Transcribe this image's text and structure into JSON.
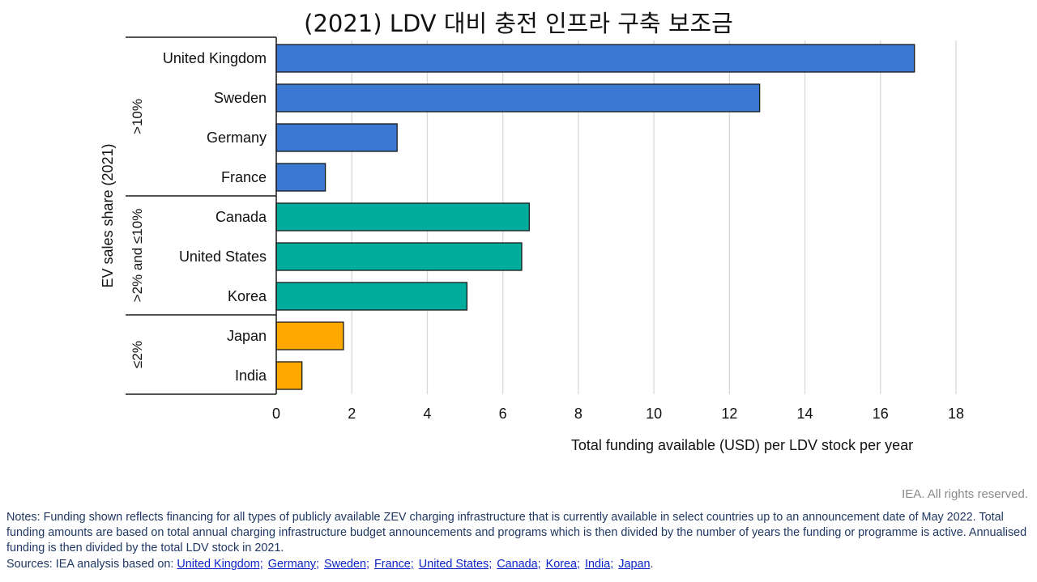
{
  "title": "(2021) LDV 대비 충전 인프라 구축 보조금",
  "credit": "IEA. All rights reserved.",
  "notes": "Notes: Funding shown reflects financing for all types of publicly available ZEV charging infrastructure that is currently available in select countries up to an announcement date of May 2022. Total funding amounts are based on total annual charging infrastructure budget announcements and programs which is then divided by the number of years the funding or programme is active. Annualised funding is then divided by the total LDV stock in 2021.",
  "sources": {
    "prefix": "Sources: IEA analysis based on: ",
    "links": [
      "United Kingdom;",
      "Germany;",
      "Sweden;",
      "France;",
      "United States;",
      "Canada;",
      "Korea;",
      "India;",
      "Japan"
    ],
    "suffix": "."
  },
  "colors": {
    "group_high": "#3a78d4",
    "group_mid": "#00ad9c",
    "group_low": "#ffa800",
    "grid": "#d9d9d9",
    "bar_outline": "#1a1a1a"
  },
  "chart_data": {
    "type": "bar",
    "orientation": "horizontal",
    "xlabel": "Total funding available (USD) per LDV stock per year",
    "ylabel": "EV sales share (2021)",
    "xlim": [
      0,
      18
    ],
    "xticks": [
      "0",
      "2",
      "4",
      "6",
      "8",
      "10",
      "12",
      "14",
      "16",
      "18"
    ],
    "grid": true,
    "groups": [
      {
        "label": ">10%",
        "color": "#3a78d4",
        "categories": [
          "United Kingdom",
          "Sweden",
          "Germany",
          "France"
        ],
        "values": [
          16.9,
          12.8,
          3.2,
          1.3
        ]
      },
      {
        "label": ">2% and ≤10%",
        "color": "#00ad9c",
        "categories": [
          "Canada",
          "United States",
          "Korea"
        ],
        "values": [
          6.7,
          6.5,
          5.05
        ]
      },
      {
        "label": "≤2%",
        "color": "#ffa800",
        "categories": [
          "Japan",
          "India"
        ],
        "values": [
          1.78,
          0.68
        ]
      }
    ]
  }
}
